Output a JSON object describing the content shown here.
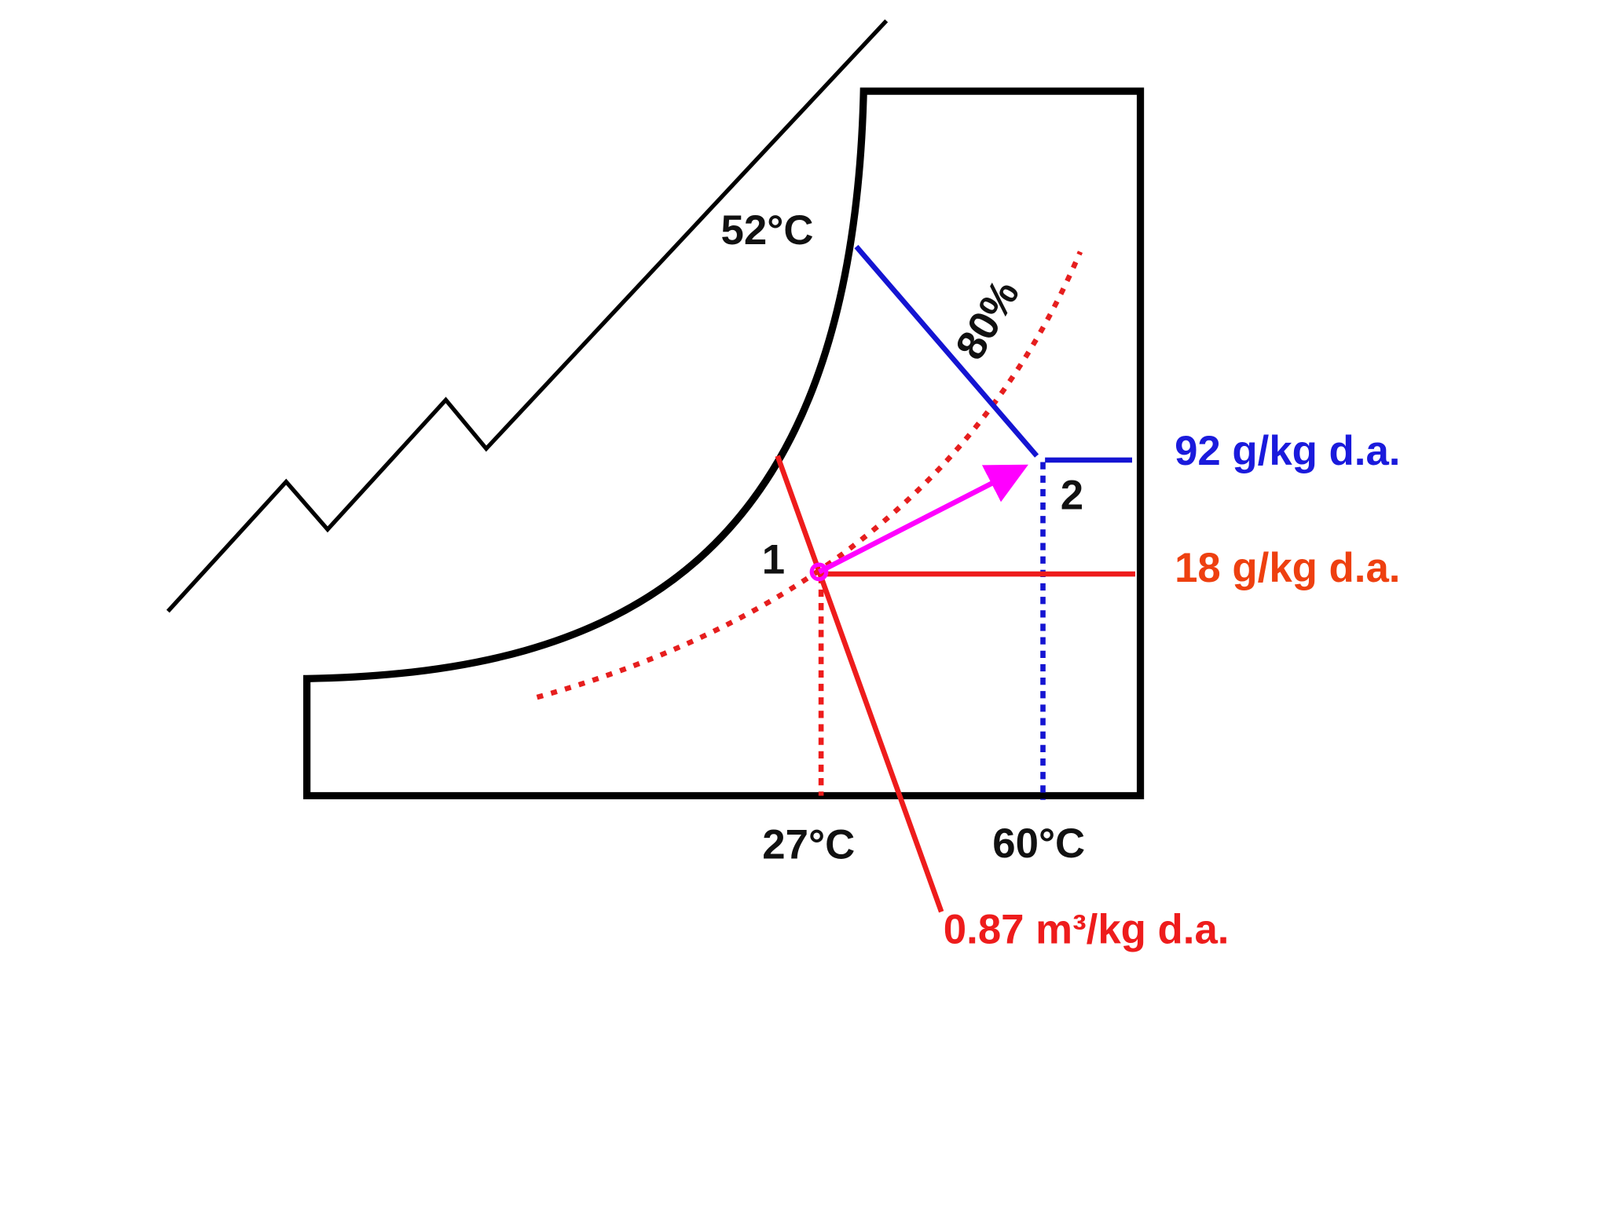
{
  "labels": {
    "saturation_temp": "52°C",
    "relative_humidity": "80%",
    "humidity_ratio_2": "92 g/kg d.a.",
    "humidity_ratio_1": "18 g/kg d.a.",
    "point_1": "1",
    "point_2": "2",
    "dry_bulb_1": "27°C",
    "dry_bulb_2": "60°C",
    "specific_volume": "0.87 m³/kg d.a."
  }
}
